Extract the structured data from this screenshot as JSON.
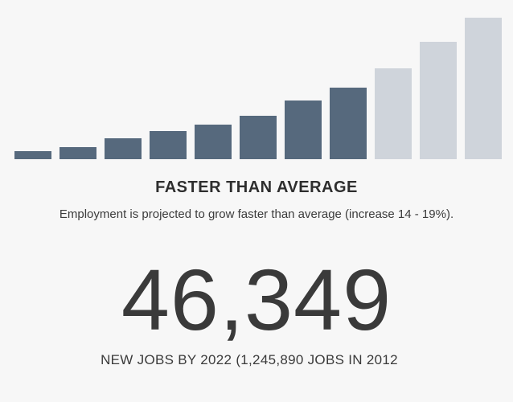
{
  "chart_data": {
    "type": "bar",
    "categories": [
      "1",
      "2",
      "3",
      "4",
      "5",
      "6",
      "7",
      "8",
      "9",
      "10",
      "11"
    ],
    "values": [
      10,
      15,
      26,
      35,
      43,
      54,
      73,
      89,
      113,
      146,
      176
    ],
    "highlighted_count": 8,
    "ylim": [
      0,
      176
    ],
    "grid": false,
    "colors": {
      "highlighted": "#56697d",
      "muted": "#cfd4db"
    }
  },
  "rating": {
    "title": "FASTER THAN AVERAGE",
    "description": "Employment is projected to grow faster than average (increase 14 - 19%)."
  },
  "jobs": {
    "count": "46,349",
    "caption": "NEW JOBS BY 2022 (1,245,890 JOBS IN 2012"
  }
}
